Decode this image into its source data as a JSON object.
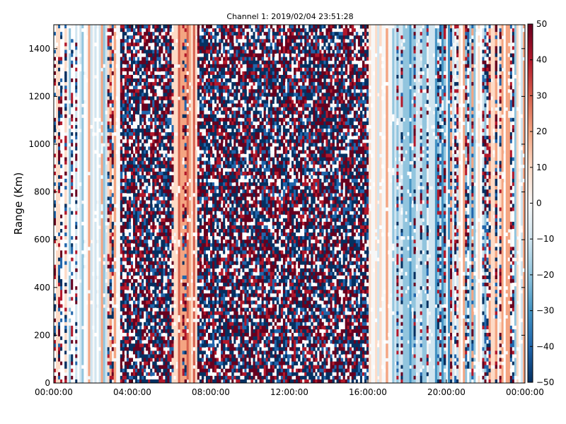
{
  "chart_data": {
    "type": "heatmap",
    "title": "Channel 1: 2019/02/04 23:51:28",
    "xlabel": "",
    "ylabel": "Range (Km)",
    "x_ticks": [
      "00:00:00",
      "04:00:00",
      "08:00:00",
      "12:00:00",
      "16:00:00",
      "20:00:00",
      "00:00:00"
    ],
    "y_ticks": [
      0,
      200,
      400,
      600,
      800,
      1000,
      1200,
      1400
    ],
    "ylim": [
      0,
      1500
    ],
    "colorbar": {
      "min": -50,
      "max": 50,
      "ticks": [
        50,
        40,
        30,
        20,
        10,
        0,
        -10,
        -20,
        -30,
        -40,
        -50
      ],
      "colors": [
        "#053061",
        "#2166ac",
        "#4393c3",
        "#92c5de",
        "#d1e5f0",
        "#f7f7f7",
        "#fddbc7",
        "#f4a582",
        "#d6604d",
        "#b2182b",
        "#67001f"
      ]
    },
    "time_bands": [
      {
        "from_hour": 0.0,
        "to_hour": 3.4,
        "pattern": "striped-mixed"
      },
      {
        "from_hour": 3.4,
        "to_hour": 6.0,
        "pattern": "saturated-noise"
      },
      {
        "from_hour": 6.0,
        "to_hour": 7.3,
        "pattern": "warm-striped"
      },
      {
        "from_hour": 7.3,
        "to_hour": 16.0,
        "pattern": "saturated-noise"
      },
      {
        "from_hour": 16.0,
        "to_hour": 17.3,
        "pattern": "striped-mixed"
      },
      {
        "from_hour": 17.3,
        "to_hour": 20.2,
        "pattern": "cool-striped"
      },
      {
        "from_hour": 20.2,
        "to_hour": 24.0,
        "pattern": "striped-mixed"
      }
    ]
  }
}
